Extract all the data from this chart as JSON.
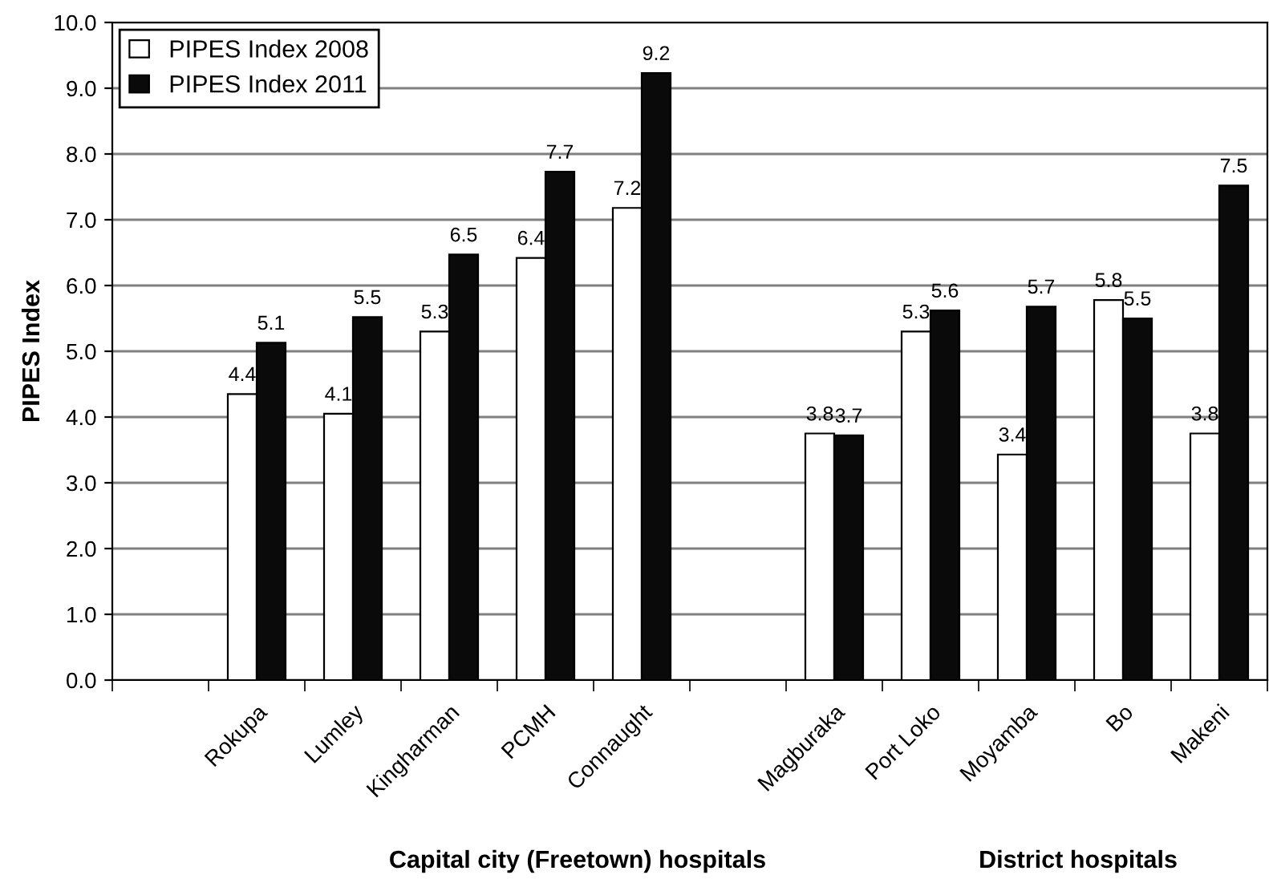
{
  "chart_data": {
    "type": "bar",
    "ylabel": "PIPES Index",
    "categories": [
      null,
      "Rokupa",
      "Lumley",
      "Kingharman",
      "PCMH",
      "Connaught",
      null,
      "Magburaka",
      "Port Loko",
      "Moyamba",
      "Bo",
      "Makeni"
    ],
    "series": [
      {
        "name": "PIPES Index 2008",
        "color": "#ffffff",
        "values": [
          null,
          4.35,
          4.05,
          5.3,
          6.42,
          7.18,
          null,
          3.75,
          5.3,
          3.43,
          5.78,
          3.75
        ],
        "value_labels": [
          null,
          "4.4",
          "4.1",
          "5.3",
          "6.4",
          "7.2",
          null,
          "3.8",
          "5.3",
          "3.4",
          "5.8",
          "3.8"
        ]
      },
      {
        "name": "PIPES Index 2011",
        "color": "#0a0a0a",
        "values": [
          null,
          5.13,
          5.52,
          6.47,
          7.73,
          9.23,
          null,
          3.72,
          5.62,
          5.68,
          5.5,
          7.52
        ],
        "value_labels": [
          null,
          "5.1",
          "5.5",
          "6.5",
          "7.7",
          "9.2",
          null,
          "3.7",
          "5.6",
          "5.7",
          "5.5",
          "7.5"
        ]
      }
    ],
    "ylim": [
      0,
      10
    ],
    "yticks": [
      {
        "value": 0,
        "label": "0.0"
      },
      {
        "value": 1,
        "label": "1.0"
      },
      {
        "value": 2,
        "label": "2.0"
      },
      {
        "value": 3,
        "label": "3.0"
      },
      {
        "value": 4,
        "label": "4.0"
      },
      {
        "value": 5,
        "label": "5.0"
      },
      {
        "value": 6,
        "label": "6.0"
      },
      {
        "value": 7,
        "label": "7.0"
      },
      {
        "value": 8,
        "label": "8.0"
      },
      {
        "value": 9,
        "label": "9.0"
      },
      {
        "value": 10,
        "label": "10.0"
      }
    ],
    "grid": "y",
    "legend": "top left",
    "annotations": [
      "Capital city (Freetown) hospitals",
      "District hospitals"
    ]
  }
}
